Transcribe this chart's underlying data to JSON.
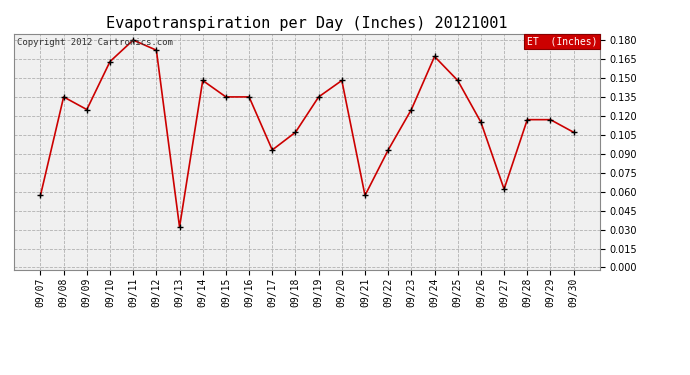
{
  "title": "Evapotranspiration per Day (Inches) 20121001",
  "copyright_text": "Copyright 2012 Cartronics.com",
  "legend_label": "ET  (Inches)",
  "legend_bg": "#cc0000",
  "legend_fg": "#ffffff",
  "dates": [
    "09/07",
    "09/08",
    "09/09",
    "09/10",
    "09/11",
    "09/12",
    "09/13",
    "09/14",
    "09/15",
    "09/16",
    "09/17",
    "09/18",
    "09/19",
    "09/20",
    "09/21",
    "09/22",
    "09/23",
    "09/24",
    "09/25",
    "09/26",
    "09/27",
    "09/28",
    "09/29",
    "09/30"
  ],
  "values": [
    0.057,
    0.135,
    0.125,
    0.163,
    0.18,
    0.172,
    0.032,
    0.148,
    0.135,
    0.135,
    0.093,
    0.107,
    0.135,
    0.148,
    0.057,
    0.093,
    0.125,
    0.167,
    0.148,
    0.115,
    0.062,
    0.117,
    0.117,
    0.107
  ],
  "line_color": "#cc0000",
  "marker_color": "#000000",
  "bg_color": "#ffffff",
  "plot_bg_color": "#f0f0f0",
  "grid_color": "#aaaaaa",
  "ylim_min": 0.0,
  "ylim_max": 0.18,
  "ytick_step": 0.015,
  "title_fontsize": 11,
  "tick_fontsize": 7,
  "copyright_fontsize": 6.5,
  "legend_fontsize": 7
}
